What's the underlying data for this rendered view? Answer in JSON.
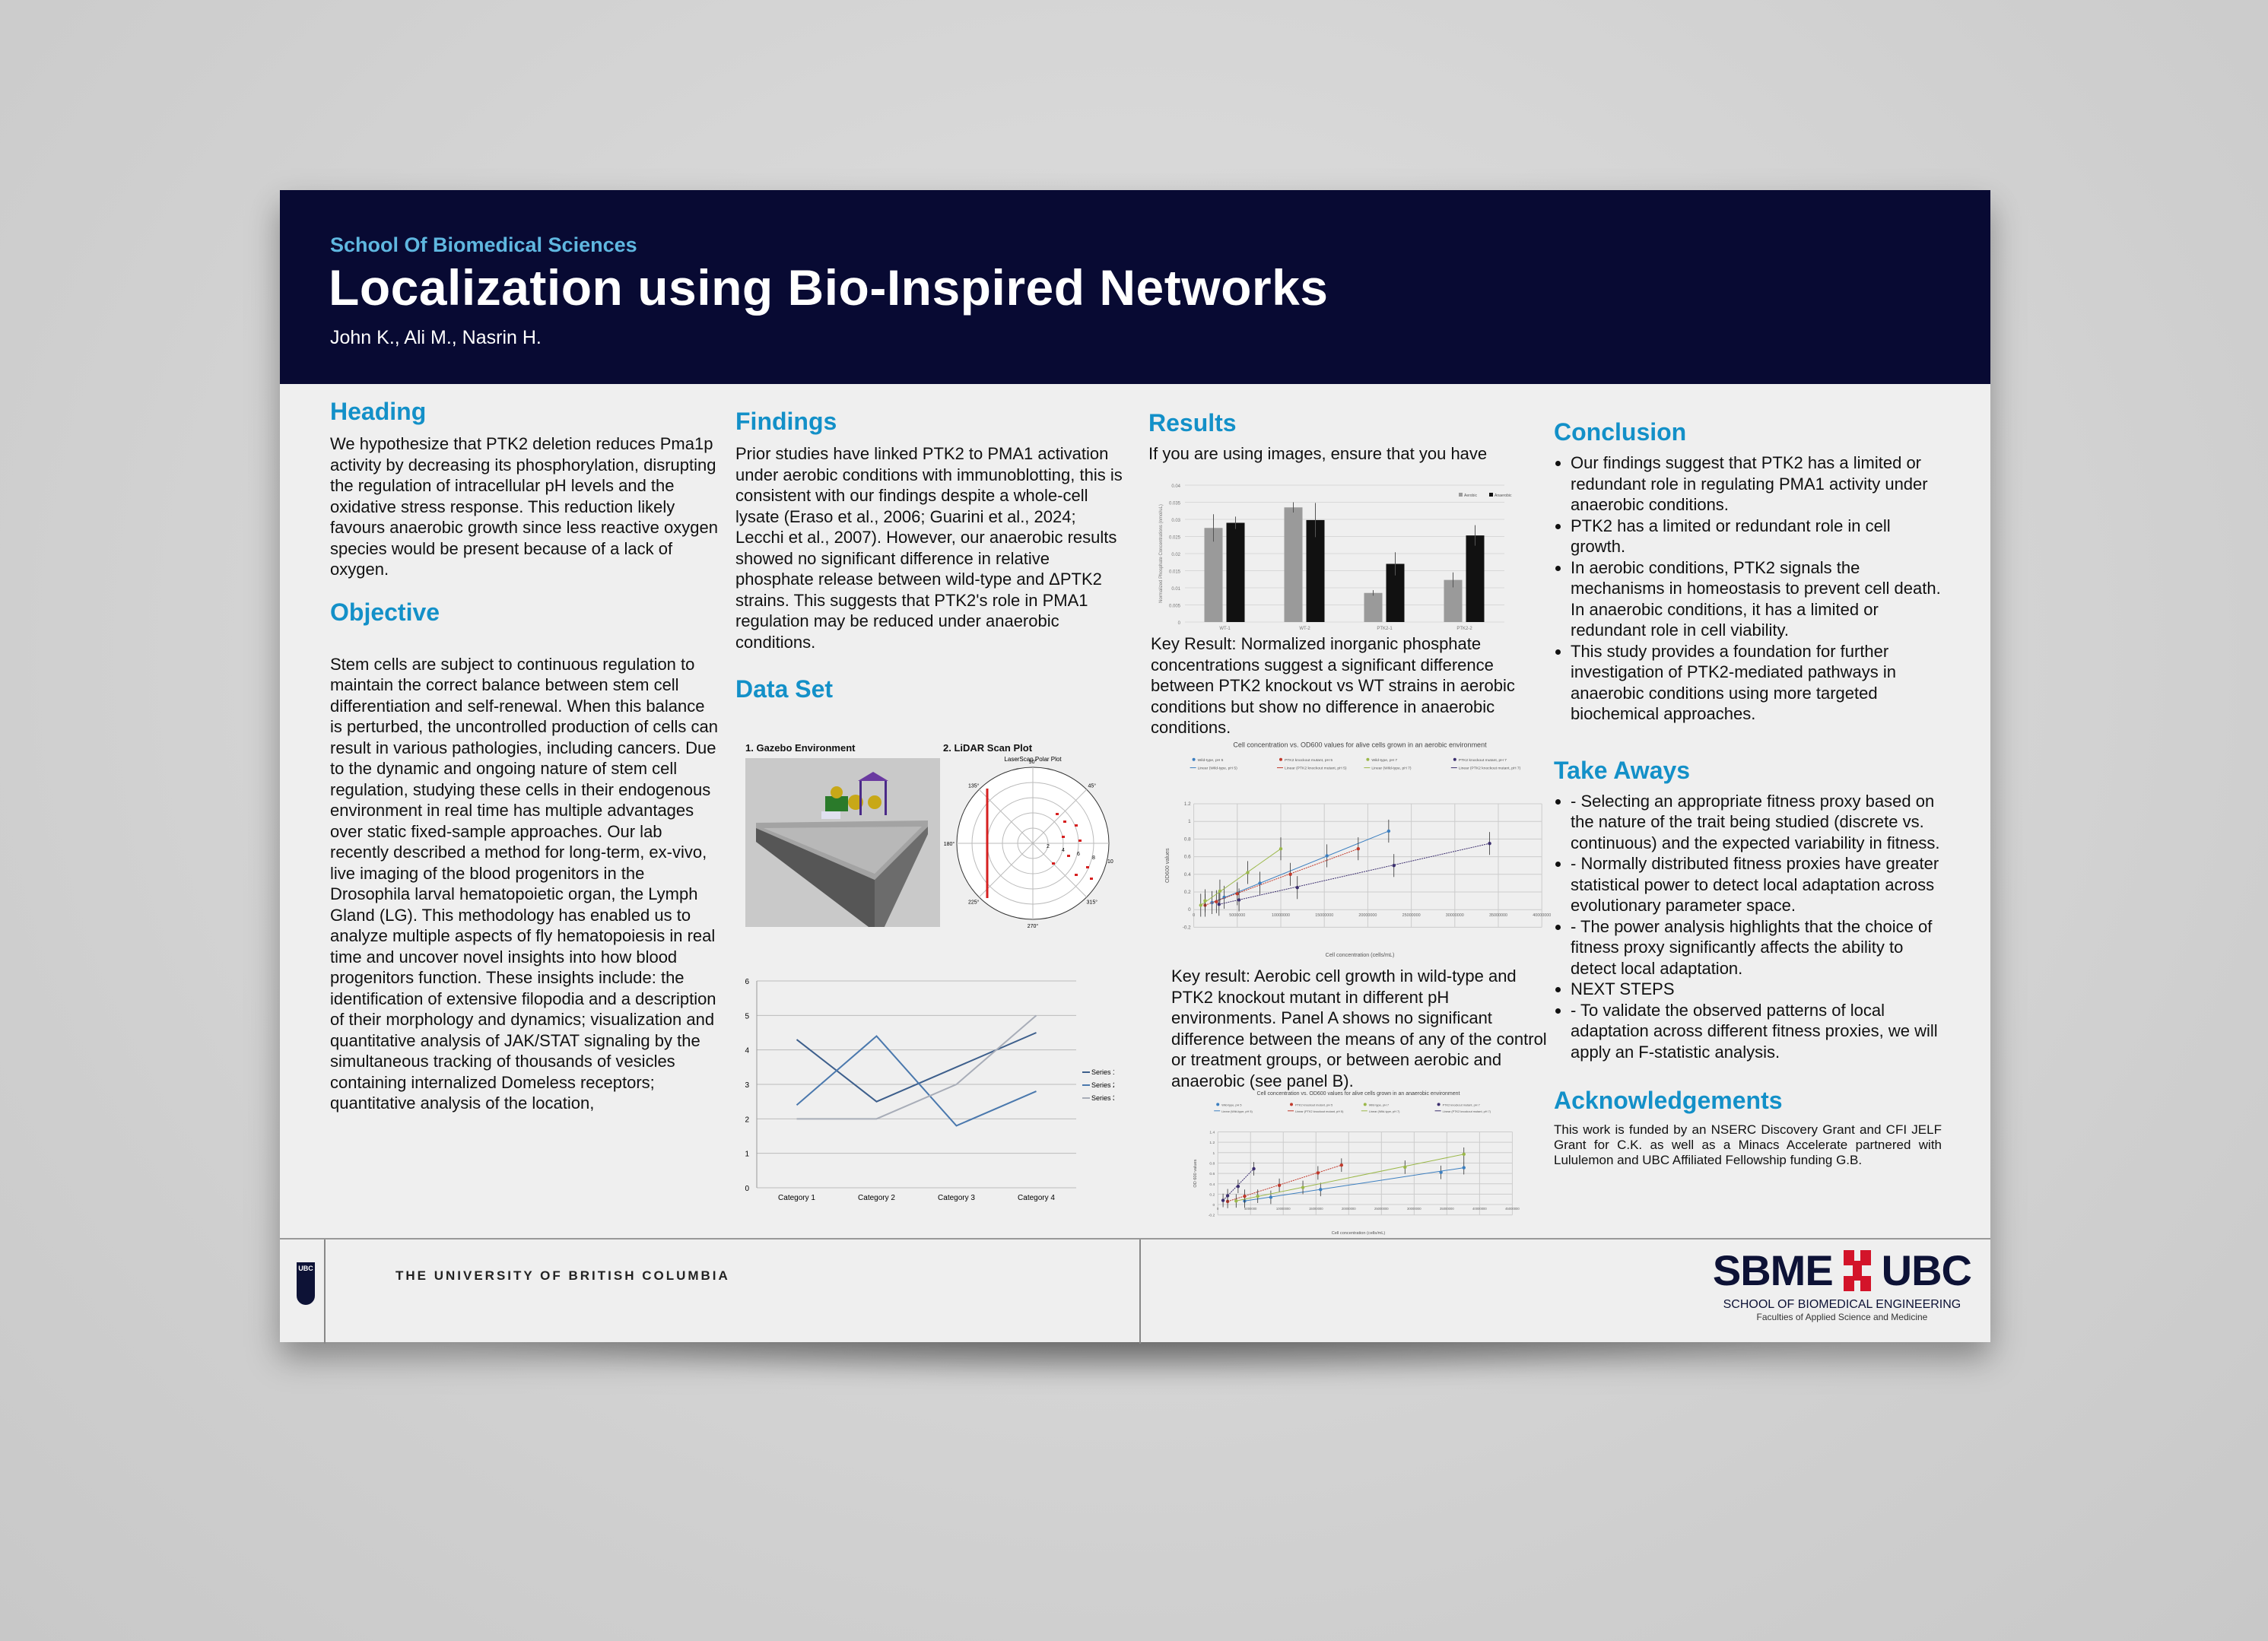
{
  "header": {
    "school": "School Of Biomedical Sciences",
    "title": "Localization using Bio-Inspired Networks",
    "authors": "John K., Ali M., Nasrin H."
  },
  "col1": {
    "heading1": "Heading",
    "text1": "We hypothesize that PTK2 deletion reduces Pma1p activity by decreasing its phosphorylation, disrupting the regulation of intracellular pH levels and the oxidative stress response. This reduction likely favours anaerobic growth since less reactive oxygen species would be present because of a lack of oxygen.",
    "heading2": "Objective",
    "text2": "Stem cells are subject to continuous regulation to maintain the correct balance between stem cell differentiation and self-renewal. When this balance is perturbed, the uncontrolled production of cells can result in various pathologies, including cancers. Due to the dynamic and ongoing nature of stem cell regulation, studying these cells in their endogenous environment in real time has multiple advantages over static fixed-sample approaches. Our lab recently described a method for long-term, ex-vivo, live imaging of the blood progenitors in the Drosophila larval hematopoietic organ, the Lymph Gland (LG). This methodology has enabled us to analyze multiple aspects of fly hematopoiesis in real time and uncover novel insights into how blood progenitors function. These insights include: the identification of extensive filopodia and a description of their morphology and dynamics; visualization and quantitative analysis of JAK/STAT signaling by the simultaneous tracking of thousands of vesicles containing internalized Domeless receptors; quantitative analysis of the location,"
  },
  "col2": {
    "heading1": "Findings",
    "text1": "Prior studies have linked PTK2 to PMA1 activation under aerobic conditions with immunoblotting, this is consistent with our findings despite a whole-cell lysate (Eraso et al., 2006; Guarini et al., 2024; Lecchi et al., 2007). However, our anaerobic results showed no significant difference in relative phosphate release between wild-type and ΔPTK2 strains. This suggests that PTK2's role in PMA1 regulation may be reduced under anaerobic conditions.",
    "heading2": "Data Set",
    "img1_label": "1. Gazebo Environment",
    "img2_label": "2. LiDAR Scan Plot",
    "polar": {
      "title": "LaserScan Polar Plot",
      "angles": [
        "90°",
        "45°",
        "135°",
        "180°",
        "225°",
        "270°",
        "315°"
      ],
      "radii": [
        "2",
        "4",
        "6",
        "8",
        "10"
      ]
    }
  },
  "col3": {
    "heading": "Results",
    "intro": "If you are using images, ensure that you have",
    "key1": "Key Result: Normalized inorganic phosphate concentrations suggest a significant difference between PTK2 knockout vs WT strains in aerobic conditions but show no difference in anaerobic conditions.",
    "key2": "Key result: Aerobic cell growth in wild-type and PTK2 knockout mutant in different pH environments. Panel A shows no significant difference between the means of any of the control or treatment groups, or between aerobic and anaerobic (see panel B)."
  },
  "col4": {
    "heading1": "Conclusion",
    "conclusion": [
      "Our findings suggest that PTK2 has a limited or redundant role in regulating PMA1 activity under anaerobic conditions.",
      "PTK2 has a limited or redundant role in cell growth.",
      "In aerobic conditions, PTK2 signals the mechanisms in homeostasis to prevent cell death. In anaerobic conditions, it has a limited or redundant role in cell viability.",
      "This study provides a foundation for further investigation of PTK2-mediated pathways in anaerobic conditions using more targeted biochemical approaches."
    ],
    "heading2": "Take Aways",
    "takeaways": [
      "- Selecting an appropriate fitness proxy based on the nature of the trait being studied (discrete vs. continuous) and the expected variability in fitness.",
      "- Normally distributed fitness proxies have greater statistical power to detect local adaptation across evolutionary parameter space.",
      "- The power analysis highlights that the choice of fitness proxy significantly affects the ability to detect local adaptation.",
      "NEXT STEPS",
      "- To validate the observed patterns of local adaptation across different fitness proxies, we will apply an F-statistic analysis."
    ],
    "heading3": "Acknowledgements",
    "ack": "This work is funded by an NSERC Discovery Grant and CFI JELF Grant for C.K. as well as a Minacs Accelerate partnered with Lululemon and UBC Affiliated Fellowship funding G.B."
  },
  "footer": {
    "ubc": "THE UNIVERSITY OF BRITISH COLUMBIA",
    "ubc_crest": "UBC",
    "sbme_left": "SBME",
    "sbme_right": "UBC",
    "sbme_sub1": "SCHOOL OF BIOMEDICAL ENGINEERING",
    "sbme_sub2": "Faculties of Applied Science and Medicine"
  },
  "colors": {
    "navy": "#080a33",
    "heading_blue": "#1390c8",
    "school_blue": "#5fb7e0",
    "sbme_red": "#d3142a"
  },
  "chart_data": [
    {
      "id": "bar",
      "type": "bar",
      "title": "",
      "ylabel": "Normalized Phosphate Concentrations (nmol/uL)",
      "categories": [
        "WT-1",
        "WT-2",
        "PTK2-1",
        "PTK2-2"
      ],
      "ylim": [
        0,
        0.04
      ],
      "yticks": [
        "0",
        "0.005",
        "0.01",
        "0.015",
        "0.02",
        "0.025",
        "0.03",
        "0.035",
        "0.04"
      ],
      "legend": "top-right",
      "series": [
        {
          "name": "Aerobic",
          "color": "#9a9a9a",
          "values": [
            0.0275,
            0.0335,
            0.0085,
            0.0123
          ],
          "err": [
            0.004,
            0.0015,
            0.0008,
            0.0022
          ]
        },
        {
          "name": "Anaerobic",
          "color": "#111111",
          "values": [
            0.029,
            0.0298,
            0.017,
            0.0253
          ],
          "err": [
            0.0018,
            0.005,
            0.0034,
            0.003
          ]
        }
      ],
      "grid": true
    },
    {
      "id": "line",
      "type": "line",
      "categories": [
        "Category 1",
        "Category 2",
        "Category 3",
        "Category 4"
      ],
      "ylim": [
        0,
        6
      ],
      "yticks": [
        "0",
        "1",
        "2",
        "3",
        "4",
        "5",
        "6"
      ],
      "legend": "right",
      "grid": true,
      "series": [
        {
          "name": "Series 1",
          "color": "#3d5f8c",
          "values": [
            4.3,
            2.5,
            3.5,
            4.5
          ]
        },
        {
          "name": "Series 2",
          "color": "#4a78ad",
          "values": [
            2.4,
            4.4,
            1.8,
            2.8
          ]
        },
        {
          "name": "Series 3",
          "color": "#a8adb8",
          "values": [
            2,
            2,
            3,
            5
          ]
        }
      ]
    },
    {
      "id": "aerobic",
      "type": "scatter",
      "title": "Cell concentration vs. OD600 values for alive cells grown in an aerobic environment",
      "xlabel": "Cell concentration (cells/mL)",
      "ylabel": "OD600 values",
      "xlim": [
        0,
        40000000
      ],
      "ylim": [
        -0.2,
        1.2
      ],
      "xtick_step": 5000000,
      "ytick_step": 0.2,
      "grid": true,
      "legend": "top",
      "series": [
        {
          "name": "Wild-type, pH 5",
          "trend": "Linear (Wild-type, pH 5)",
          "color": "#3c7fc0",
          "points": [
            [
              2100000,
              0.08
            ],
            [
              3500000,
              0.14
            ],
            [
              7600000,
              0.3
            ],
            [
              15300000,
              0.61
            ],
            [
              22400000,
              0.89
            ]
          ]
        },
        {
          "name": "PTK2 knockout mutant, pH 5",
          "trend": "Linear (PTK2 knockout mutant, pH 5)",
          "color": "#c0392b",
          "points": [
            [
              1300000,
              0.05
            ],
            [
              2600000,
              0.09
            ],
            [
              5000000,
              0.18
            ],
            [
              11100000,
              0.4
            ],
            [
              18900000,
              0.69
            ]
          ]
        },
        {
          "name": "Wild-type, pH 7",
          "trend": "Linear (Wild-type, pH 7)",
          "color": "#9bb84a",
          "points": [
            [
              800000,
              0.05
            ],
            [
              1300000,
              0.1
            ],
            [
              3000000,
              0.21
            ],
            [
              6200000,
              0.42
            ],
            [
              10000000,
              0.69
            ]
          ]
        },
        {
          "name": "PTK2 knockout mutant, pH 7",
          "trend": "Linear (PTK2 knockout mutant, pH 7)",
          "color": "#3b2e6e",
          "points": [
            [
              2900000,
              0.06
            ],
            [
              5200000,
              0.11
            ],
            [
              11900000,
              0.25
            ],
            [
              23000000,
              0.5
            ],
            [
              34000000,
              0.75
            ]
          ]
        }
      ]
    },
    {
      "id": "anaerobic",
      "type": "scatter",
      "title": "Cell concentration vs. OD600 values for alive cells grown in an anaerobic environment",
      "xlabel": "Cell concentration (cells/mL)",
      "ylabel": "OD 600 values",
      "xlim": [
        0,
        45000000
      ],
      "ylim": [
        -0.2,
        1.4
      ],
      "xtick_step": 5000000,
      "ytick_step": 0.2,
      "grid": true,
      "legend": "top",
      "series": [
        {
          "name": "Wild-type, pH 5",
          "trend": "Linear (Wild-type, pH 5)",
          "color": "#3c7fc0",
          "points": [
            [
              4100000,
              0.07
            ],
            [
              8100000,
              0.14
            ],
            [
              15700000,
              0.29
            ],
            [
              34100000,
              0.62
            ],
            [
              37600000,
              0.71
            ]
          ]
        },
        {
          "name": "PTK2 knockout mutant, pH 5",
          "trend": "Linear (PTK2 knockout mutant, pH 5)",
          "color": "#c0392b",
          "points": [
            [
              1500000,
              0.06
            ],
            [
              4100000,
              0.16
            ],
            [
              9400000,
              0.37
            ],
            [
              15300000,
              0.61
            ],
            [
              18900000,
              0.76
            ]
          ]
        },
        {
          "name": "Wild-type, pH 7",
          "trend": "Linear (Wild-type, pH 7)",
          "color": "#9bb84a",
          "points": [
            [
              2800000,
              0.07
            ],
            [
              6100000,
              0.16
            ],
            [
              13000000,
              0.33
            ],
            [
              28600000,
              0.72
            ],
            [
              37600000,
              0.97
            ]
          ]
        },
        {
          "name": "PTK2 knockout mutant, pH 7",
          "trend": "Linear (PTK2 knockout mutant, pH 7)",
          "color": "#3b2e6e",
          "points": [
            [
              800000,
              0.08
            ],
            [
              1500000,
              0.17
            ],
            [
              3100000,
              0.35
            ],
            [
              5500000,
              0.69
            ]
          ]
        }
      ]
    }
  ]
}
